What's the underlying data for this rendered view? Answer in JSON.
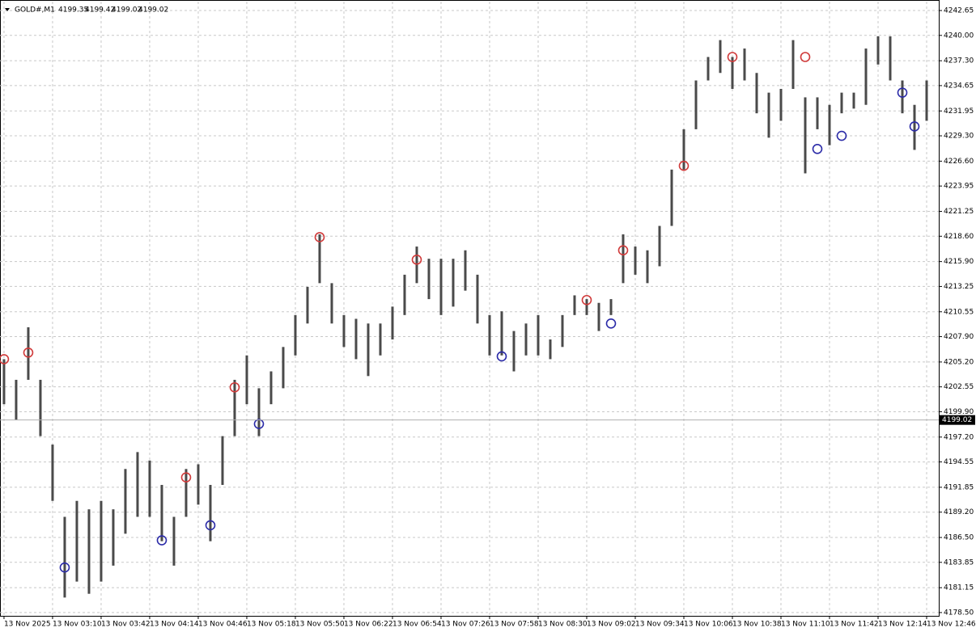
{
  "chart_data": {
    "type": "hilo",
    "symbol": "GOLD#,M1",
    "quote": [
      4199.35,
      4199.42,
      4199.02,
      4199.02
    ],
    "current_price": 4199.02,
    "color": "#4a4a4a",
    "highs": [
      4205.5,
      4203.3,
      4208.9,
      4203.3,
      4196.4,
      4188.7,
      4190.4,
      4189.5,
      4190.4,
      4189.5,
      4193.8,
      4195.6,
      4194.7,
      4192.1,
      4188.7,
      4193.8,
      4194.3,
      4192.1,
      4197.3,
      4203.3,
      4205.9,
      4202.4,
      4204.2,
      4206.8,
      4210.2,
      4213.2,
      4218.8,
      4213.6,
      4210.2,
      4209.8,
      4209.3,
      4209.3,
      4211.1,
      4214.5,
      4217.5,
      4216.2,
      4216.2,
      4216.2,
      4217.1,
      4214.5,
      4210.2,
      4210.6,
      4208.5,
      4209.3,
      4210.2,
      4207.6,
      4210.2,
      4212.3,
      4211.9,
      4211.5,
      4211.9,
      4218.8,
      4217.5,
      4217.1,
      4219.7,
      4225.7,
      4230.0,
      4235.2,
      4237.7,
      4239.5,
      4237.7,
      4238.6,
      4236.0,
      4233.9,
      4234.3,
      4239.5,
      4233.4,
      4233.4,
      4232.6,
      4233.9,
      4233.9,
      4238.6,
      4239.9,
      4239.9,
      4235.2,
      4232.6,
      4235.2
    ],
    "lows": [
      4200.7,
      4199.0,
      4203.3,
      4197.3,
      4190.4,
      4180.1,
      4181.8,
      4180.5,
      4181.8,
      4183.5,
      4186.9,
      4188.7,
      4188.7,
      4186.1,
      4183.5,
      4188.7,
      4190.0,
      4186.1,
      4192.1,
      4197.3,
      4200.7,
      4197.3,
      4200.7,
      4202.4,
      4205.9,
      4209.3,
      4213.6,
      4209.3,
      4206.8,
      4205.5,
      4203.7,
      4205.9,
      4207.6,
      4210.2,
      4213.6,
      4211.9,
      4210.2,
      4211.1,
      4212.8,
      4209.3,
      4205.9,
      4205.9,
      4204.2,
      4205.9,
      4205.9,
      4205.5,
      4206.8,
      4210.2,
      4210.2,
      4208.5,
      4210.2,
      4213.6,
      4214.5,
      4213.6,
      4215.4,
      4219.7,
      4225.7,
      4230.0,
      4235.2,
      4236.0,
      4234.3,
      4235.2,
      4231.7,
      4229.1,
      4230.9,
      4234.3,
      4225.3,
      4230.0,
      4228.3,
      4231.7,
      4232.2,
      4232.6,
      4236.9,
      4235.2,
      4231.7,
      4227.8,
      4230.9
    ],
    "markers": [
      {
        "color": "#d03a3a",
        "points": [
          {
            "bar": 0,
            "price": 4205.5
          },
          {
            "bar": 2,
            "price": 4206.2
          },
          {
            "bar": 15,
            "price": 4192.9
          },
          {
            "bar": 19,
            "price": 4202.5
          },
          {
            "bar": 26,
            "price": 4218.5
          },
          {
            "bar": 34,
            "price": 4216.1
          },
          {
            "bar": 48,
            "price": 4211.8
          },
          {
            "bar": 51,
            "price": 4217.1
          },
          {
            "bar": 56,
            "price": 4226.1
          },
          {
            "bar": 60,
            "price": 4237.7
          },
          {
            "bar": 66,
            "price": 4237.7
          }
        ]
      },
      {
        "color": "#2b2ba8",
        "points": [
          {
            "bar": 5,
            "price": 4183.3
          },
          {
            "bar": 13,
            "price": 4186.2
          },
          {
            "bar": 17,
            "price": 4187.8
          },
          {
            "bar": 21,
            "price": 4198.6
          },
          {
            "bar": 41,
            "price": 4205.8
          },
          {
            "bar": 50,
            "price": 4209.3
          },
          {
            "bar": 67,
            "price": 4227.9
          },
          {
            "bar": 69,
            "price": 4229.3
          },
          {
            "bar": 74,
            "price": 4233.9
          },
          {
            "bar": 75,
            "price": 4230.3
          }
        ]
      }
    ],
    "xlim": [
      -0.33,
      77
    ],
    "xticks": [
      {
        "value": 0,
        "label": "13 Nov 2025"
      },
      {
        "value": 4,
        "label": "13 Nov 03:10"
      },
      {
        "value": 8,
        "label": "13 Nov 03:42"
      },
      {
        "value": 12,
        "label": "13 Nov 04:14"
      },
      {
        "value": 16,
        "label": "13 Nov 04:46"
      },
      {
        "value": 20,
        "label": "13 Nov 05:18"
      },
      {
        "value": 24,
        "label": "13 Nov 05:50"
      },
      {
        "value": 28,
        "label": "13 Nov 06:22"
      },
      {
        "value": 32,
        "label": "13 Nov 06:54"
      },
      {
        "value": 36,
        "label": "13 Nov 07:26"
      },
      {
        "value": 40,
        "label": "13 Nov 07:58"
      },
      {
        "value": 44,
        "label": "13 Nov 08:30"
      },
      {
        "value": 48,
        "label": "13 Nov 09:02"
      },
      {
        "value": 52,
        "label": "13 Nov 09:34"
      },
      {
        "value": 56,
        "label": "13 Nov 10:06"
      },
      {
        "value": 60,
        "label": "13 Nov 10:38"
      },
      {
        "value": 64,
        "label": "13 Nov 11:10"
      },
      {
        "value": 68,
        "label": "13 Nov 11:42"
      },
      {
        "value": 72,
        "label": "13 Nov 12:14"
      },
      {
        "value": 76,
        "label": "13 Nov 12:46"
      }
    ],
    "ylim": [
      4178.15,
      4243.6
    ],
    "yticks": [
      {
        "value": 4178.5,
        "label": "4178.50"
      },
      4181.15,
      4183.85,
      {
        "value": 4186.5,
        "label": "4186.50"
      },
      {
        "value": 4189.2,
        "label": "4189.20"
      },
      4191.85,
      4194.55,
      {
        "value": 4197.2,
        "label": "4197.20"
      },
      {
        "value": 4199.9,
        "label": "4199.90"
      },
      4202.55,
      {
        "value": 4205.2,
        "label": "4205.20"
      },
      {
        "value": 4207.9,
        "label": "4207.90"
      },
      4210.55,
      4213.25,
      {
        "value": 4215.9,
        "label": "4215.90"
      },
      {
        "value": 4218.6,
        "label": "4218.60"
      },
      4221.25,
      4223.95,
      {
        "value": 4226.6,
        "label": "4226.60"
      },
      {
        "value": 4229.3,
        "label": "4229.30"
      },
      4231.95,
      4234.65,
      {
        "value": 4237.3,
        "label": "4237.30"
      },
      {
        "value": 4240,
        "label": "4240.00"
      },
      4242.65
    ],
    "grid": true
  }
}
